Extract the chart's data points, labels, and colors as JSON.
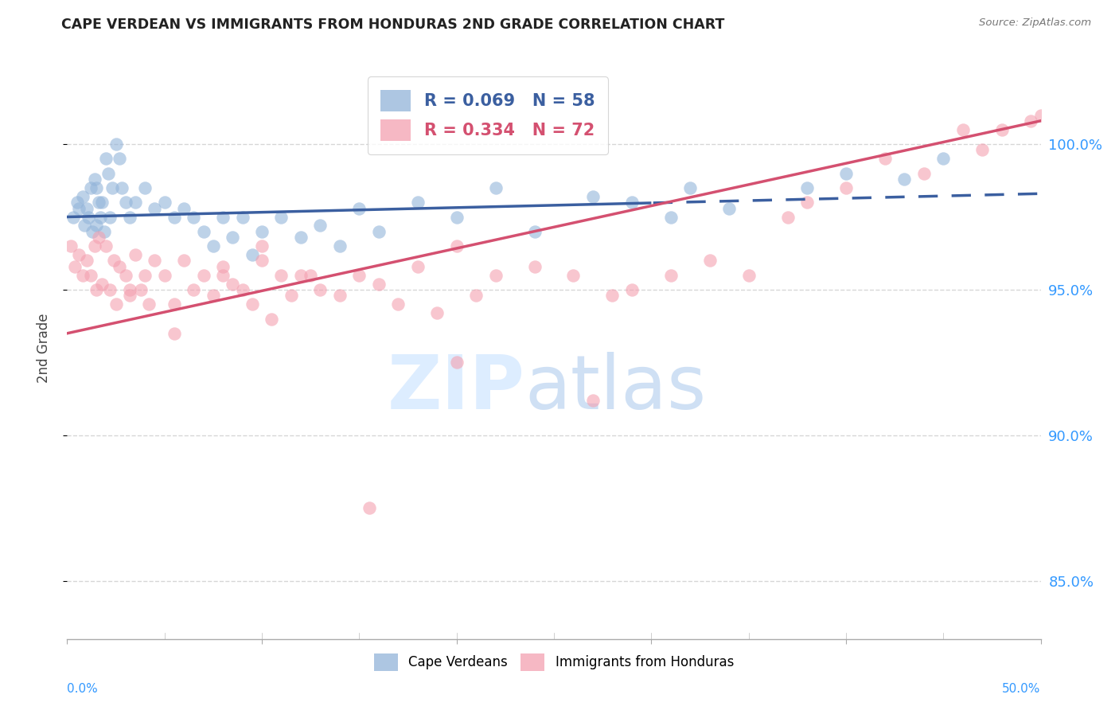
{
  "title": "CAPE VERDEAN VS IMMIGRANTS FROM HONDURAS 2ND GRADE CORRELATION CHART",
  "source": "Source: ZipAtlas.com",
  "ylabel": "2nd Grade",
  "legend_blue_r": "R = 0.069",
  "legend_blue_n": "N = 58",
  "legend_pink_r": "R = 0.334",
  "legend_pink_n": "N = 72",
  "blue_color": "#92B4D9",
  "pink_color": "#F4A0B0",
  "trend_blue_color": "#3B5FA0",
  "trend_pink_color": "#D45070",
  "legend_label_blue": "Cape Verdeans",
  "legend_label_pink": "Immigrants from Honduras",
  "blue_scatter_x": [
    0.3,
    0.5,
    0.6,
    0.8,
    0.9,
    1.0,
    1.1,
    1.2,
    1.3,
    1.4,
    1.5,
    1.5,
    1.6,
    1.7,
    1.8,
    1.9,
    2.0,
    2.1,
    2.2,
    2.3,
    2.5,
    2.7,
    2.8,
    3.0,
    3.2,
    3.5,
    4.0,
    4.5,
    5.0,
    5.5,
    6.0,
    6.5,
    7.0,
    7.5,
    8.0,
    8.5,
    9.0,
    9.5,
    10.0,
    11.0,
    12.0,
    13.0,
    14.0,
    15.0,
    16.0,
    18.0,
    20.0,
    22.0,
    24.0,
    27.0,
    29.0,
    31.0,
    32.0,
    34.0,
    38.0,
    40.0,
    43.0,
    45.0
  ],
  "blue_scatter_y": [
    97.5,
    98.0,
    97.8,
    98.2,
    97.2,
    97.8,
    97.5,
    98.5,
    97.0,
    98.8,
    98.5,
    97.2,
    98.0,
    97.5,
    98.0,
    97.0,
    99.5,
    99.0,
    97.5,
    98.5,
    100.0,
    99.5,
    98.5,
    98.0,
    97.5,
    98.0,
    98.5,
    97.8,
    98.0,
    97.5,
    97.8,
    97.5,
    97.0,
    96.5,
    97.5,
    96.8,
    97.5,
    96.2,
    97.0,
    97.5,
    96.8,
    97.2,
    96.5,
    97.8,
    97.0,
    98.0,
    97.5,
    98.5,
    97.0,
    98.2,
    98.0,
    97.5,
    98.5,
    97.8,
    98.5,
    99.0,
    98.8,
    99.5
  ],
  "pink_scatter_x": [
    0.2,
    0.4,
    0.6,
    0.8,
    1.0,
    1.2,
    1.4,
    1.5,
    1.6,
    1.8,
    2.0,
    2.2,
    2.4,
    2.5,
    2.7,
    3.0,
    3.2,
    3.5,
    3.8,
    4.0,
    4.2,
    4.5,
    5.0,
    5.5,
    6.0,
    6.5,
    7.0,
    7.5,
    8.0,
    8.5,
    9.0,
    9.5,
    10.0,
    10.5,
    11.0,
    11.5,
    12.0,
    13.0,
    14.0,
    15.0,
    16.0,
    17.0,
    18.0,
    19.0,
    20.0,
    21.0,
    22.0,
    24.0,
    26.0,
    28.0,
    29.0,
    31.0,
    33.0,
    35.0,
    37.0,
    38.0,
    40.0,
    42.0,
    44.0,
    46.0,
    47.0,
    48.0,
    49.5,
    50.0,
    27.0,
    20.0,
    15.5,
    12.5,
    10.0,
    8.0,
    5.5,
    3.2
  ],
  "pink_scatter_y": [
    96.5,
    95.8,
    96.2,
    95.5,
    96.0,
    95.5,
    96.5,
    95.0,
    96.8,
    95.2,
    96.5,
    95.0,
    96.0,
    94.5,
    95.8,
    95.5,
    94.8,
    96.2,
    95.0,
    95.5,
    94.5,
    96.0,
    95.5,
    94.5,
    96.0,
    95.0,
    95.5,
    94.8,
    95.8,
    95.2,
    95.0,
    94.5,
    96.5,
    94.0,
    95.5,
    94.8,
    95.5,
    95.0,
    94.8,
    95.5,
    95.2,
    94.5,
    95.8,
    94.2,
    96.5,
    94.8,
    95.5,
    95.8,
    95.5,
    94.8,
    95.0,
    95.5,
    96.0,
    95.5,
    97.5,
    98.0,
    98.5,
    99.5,
    99.0,
    100.5,
    99.8,
    100.5,
    100.8,
    101.0,
    91.2,
    92.5,
    87.5,
    95.5,
    96.0,
    95.5,
    93.5,
    95.0
  ],
  "xlim": [
    0,
    50
  ],
  "ylim": [
    83,
    103
  ],
  "yticks": [
    85,
    90,
    95,
    100
  ],
  "yticklabels": [
    "85.0%",
    "90.0%",
    "95.0%",
    "100.0%"
  ],
  "dashed_start_x": 30,
  "background_color": "#ffffff"
}
